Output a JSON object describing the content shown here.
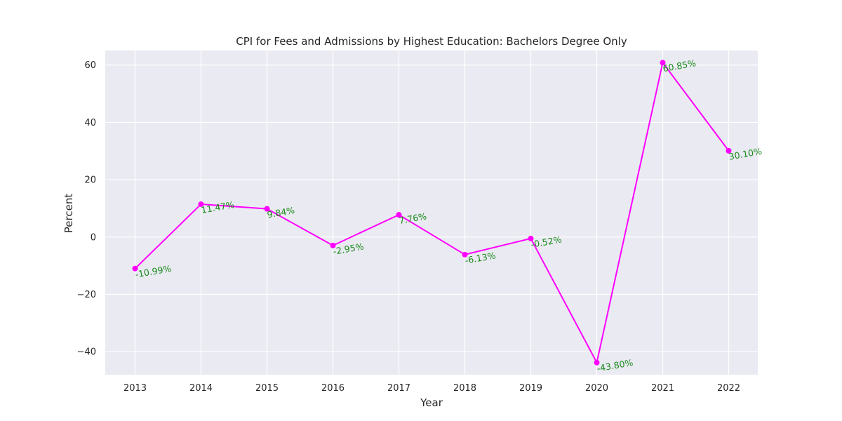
{
  "chart_data": {
    "type": "line",
    "title": "CPI for Fees and Admissions by Highest Education: Bachelors Degree Only",
    "xlabel": "Year",
    "ylabel": "Percent",
    "x": [
      "2013",
      "2014",
      "2015",
      "2016",
      "2017",
      "2018",
      "2019",
      "2020",
      "2021",
      "2022"
    ],
    "series": [
      {
        "values": [
          -10.99,
          11.47,
          9.84,
          -2.95,
          7.76,
          -6.13,
          -0.52,
          -43.8,
          60.85,
          30.1
        ],
        "labels": [
          "-10.99%",
          "11.47%",
          "9.84%",
          "-2.95%",
          "7.76%",
          "-6.13%",
          "-0.52%",
          "-43.80%",
          "60.85%",
          "30.10%"
        ]
      }
    ],
    "ylim": [
      -48.03,
      65.08
    ],
    "yticks": [
      60,
      40,
      20,
      0,
      -20,
      -40
    ],
    "ytick_labels": [
      "60",
      "40",
      "20",
      "0",
      "−20",
      "−40"
    ],
    "grid": true,
    "colors": {
      "line": "#ff00ff",
      "data_label": "#1a8a1a",
      "plot_background": "#eaeaf2",
      "grid": "#ffffff"
    }
  }
}
